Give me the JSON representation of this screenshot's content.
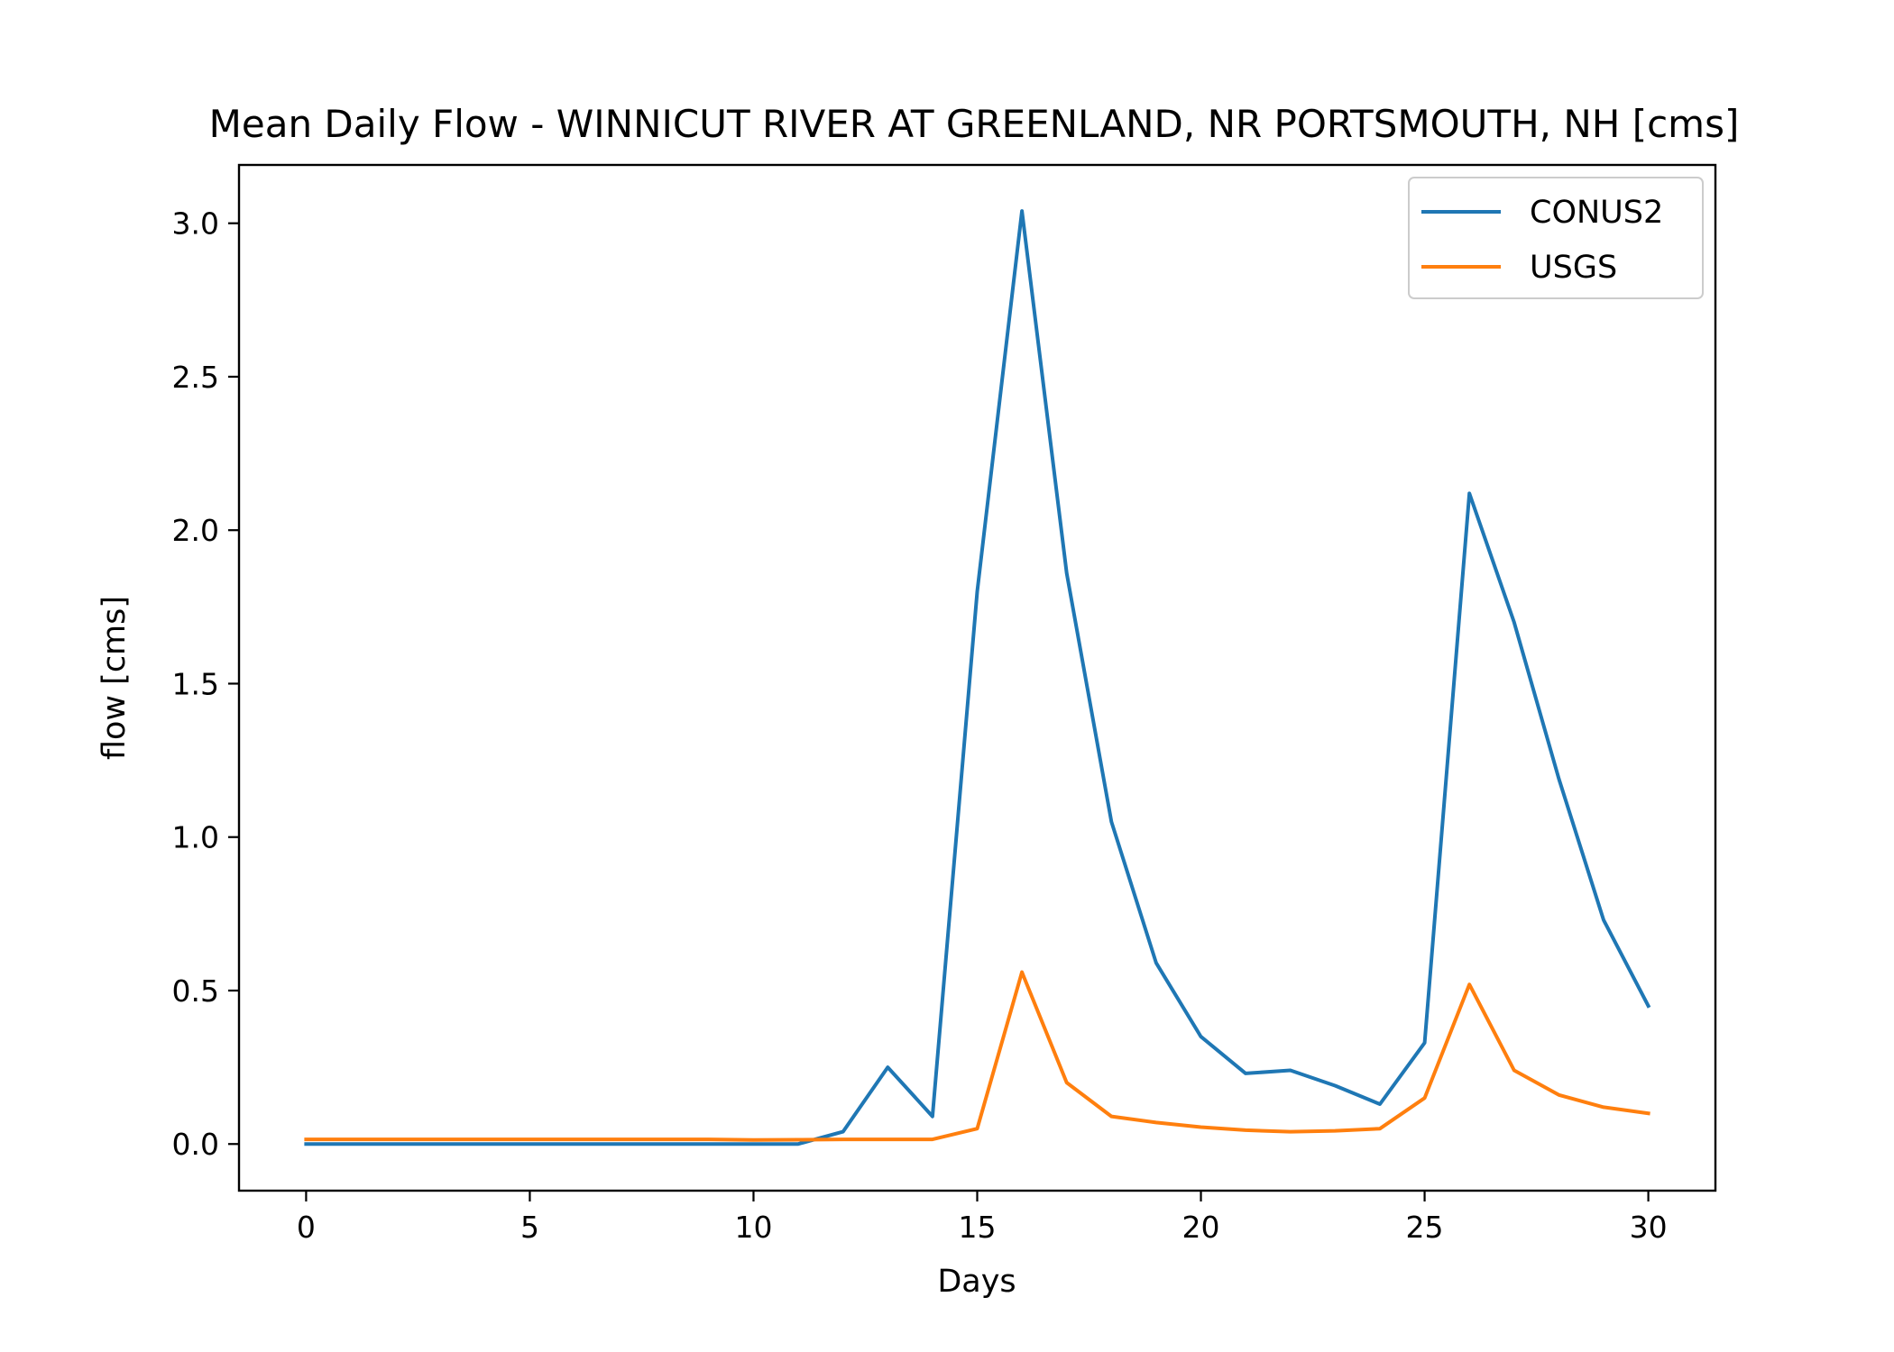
{
  "chart_data": {
    "type": "line",
    "title": "Mean Daily Flow - WINNICUT RIVER AT GREENLAND, NR PORTSMOUTH, NH [cms]",
    "xlabel": "Days",
    "ylabel": "flow [cms]",
    "xlim": [
      -1.5,
      31.5
    ],
    "ylim": [
      -0.152,
      3.19
    ],
    "xticks": [
      0,
      5,
      10,
      15,
      20,
      25,
      30
    ],
    "xtick_labels": [
      "0",
      "5",
      "10",
      "15",
      "20",
      "25",
      "30"
    ],
    "yticks": [
      0.0,
      0.5,
      1.0,
      1.5,
      2.0,
      2.5,
      3.0
    ],
    "ytick_labels": [
      "0.0",
      "0.5",
      "1.0",
      "1.5",
      "2.0",
      "2.5",
      "3.0"
    ],
    "grid": false,
    "legend": {
      "position": "top-right"
    },
    "x": [
      0,
      1,
      2,
      3,
      4,
      5,
      6,
      7,
      8,
      9,
      10,
      11,
      12,
      13,
      14,
      15,
      16,
      17,
      18,
      19,
      20,
      21,
      22,
      23,
      24,
      25,
      26,
      27,
      28,
      29,
      30
    ],
    "series": [
      {
        "name": "CONUS2",
        "color": "#1f77b4",
        "values": [
          0.0,
          0.0,
          0.0,
          0.0,
          0.0,
          0.0,
          0.0,
          0.0,
          0.0,
          0.0,
          0.0,
          0.0,
          0.04,
          0.25,
          0.09,
          1.8,
          3.04,
          1.86,
          1.05,
          0.59,
          0.35,
          0.23,
          0.24,
          0.19,
          0.13,
          0.33,
          2.12,
          1.7,
          1.19,
          0.73,
          0.45
        ]
      },
      {
        "name": "USGS",
        "color": "#ff7f0e",
        "values": [
          0.015,
          0.015,
          0.015,
          0.015,
          0.015,
          0.015,
          0.015,
          0.015,
          0.015,
          0.015,
          0.013,
          0.014,
          0.015,
          0.015,
          0.015,
          0.05,
          0.56,
          0.2,
          0.09,
          0.07,
          0.055,
          0.045,
          0.04,
          0.043,
          0.05,
          0.15,
          0.52,
          0.24,
          0.16,
          0.12,
          0.1
        ]
      }
    ]
  }
}
